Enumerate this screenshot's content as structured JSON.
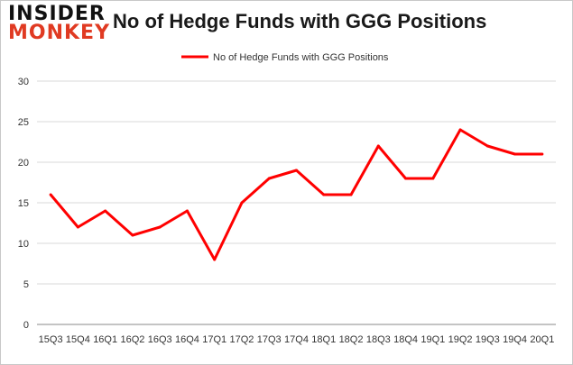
{
  "logo": {
    "line1": "INSIDER",
    "line2": "MONKEY"
  },
  "chart_data": {
    "type": "line",
    "title": "No of Hedge Funds with GGG Positions",
    "categories": [
      "15Q3",
      "15Q4",
      "16Q1",
      "16Q2",
      "16Q3",
      "16Q4",
      "17Q1",
      "17Q2",
      "17Q3",
      "17Q4",
      "18Q1",
      "18Q2",
      "18Q3",
      "18Q4",
      "19Q1",
      "19Q2",
      "19Q3",
      "19Q4",
      "20Q1"
    ],
    "series": [
      {
        "name": "No of Hedge Funds with GGG Positions",
        "values": [
          16,
          12,
          14,
          11,
          12,
          14,
          8,
          15,
          18,
          19,
          16,
          16,
          22,
          18,
          18,
          24,
          22,
          21,
          21
        ],
        "color": "#ff0000"
      }
    ],
    "ylim": [
      0,
      30
    ],
    "yticks": [
      0,
      5,
      10,
      15,
      20,
      25,
      30
    ],
    "grid": true,
    "legend": "top-center"
  }
}
